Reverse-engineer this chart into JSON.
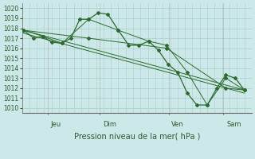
{
  "bg_color": "#cce8e8",
  "grid_color": "#aacece",
  "line_color": "#2d6a2d",
  "ylim": [
    1009.5,
    1020.5
  ],
  "yticks": [
    1010,
    1011,
    1012,
    1013,
    1014,
    1015,
    1016,
    1017,
    1018,
    1019,
    1020
  ],
  "xlabel": "Pression niveau de la mer( hPa )",
  "day_labels": [
    "Jeu",
    "Dim",
    "Ven",
    "Sam"
  ],
  "xlim": [
    0,
    310
  ],
  "series_main": {
    "x": [
      2,
      16,
      28,
      40,
      54,
      66,
      78,
      90,
      103,
      116,
      130,
      144,
      158,
      171,
      184,
      197,
      210,
      223,
      236,
      250,
      263,
      275,
      288,
      300
    ],
    "y": [
      1017.8,
      1017.0,
      1017.2,
      1016.6,
      1016.5,
      1017.0,
      1018.9,
      1018.9,
      1019.55,
      1019.4,
      1017.8,
      1016.3,
      1016.3,
      1016.7,
      1015.8,
      1014.4,
      1013.6,
      1011.5,
      1010.3,
      1010.3,
      1012.0,
      1013.3,
      1013.0,
      1011.8
    ]
  },
  "series_medium": {
    "x": [
      2,
      28,
      54,
      90,
      130,
      171,
      195,
      223,
      250,
      275,
      300
    ],
    "y": [
      1017.8,
      1017.2,
      1016.5,
      1018.9,
      1017.8,
      1016.7,
      1016.3,
      1013.6,
      1010.3,
      1013.0,
      1011.8
    ]
  },
  "series_coarse": {
    "x": [
      2,
      90,
      195,
      275,
      300
    ],
    "y": [
      1017.8,
      1017.0,
      1016.0,
      1012.0,
      1011.8
    ]
  },
  "trend1": {
    "x": [
      2,
      300
    ],
    "y": [
      1017.8,
      1011.8
    ]
  },
  "trend2": {
    "x": [
      2,
      300
    ],
    "y": [
      1017.5,
      1011.5
    ]
  }
}
